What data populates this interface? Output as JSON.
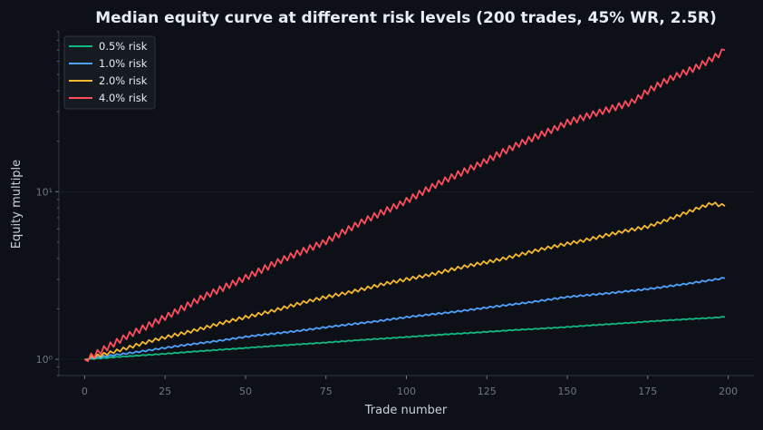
{
  "chart_data": {
    "type": "line",
    "title": "Median equity curve at different risk levels (200 trades, 45% WR, 2.5R)",
    "xlabel": "Trade number",
    "ylabel": "Equity multiple",
    "xlim": [
      -8,
      208
    ],
    "ylim": [
      0.8,
      90
    ],
    "yscale": "log",
    "x_ticks": [
      0,
      25,
      50,
      75,
      100,
      125,
      150,
      175,
      200
    ],
    "x_tick_labels": [
      "0",
      "25",
      "50",
      "75",
      "100",
      "125",
      "150",
      "175",
      "200"
    ],
    "y_ticks": [
      1,
      10
    ],
    "y_tick_labels": [
      "10⁰",
      "10¹"
    ],
    "grid": false,
    "legend_position": "top-left",
    "series": [
      {
        "name": "0.5% risk",
        "color": "#10b981",
        "x": [
          0,
          25,
          50,
          75,
          100,
          125,
          150,
          175,
          199
        ],
        "values": [
          1.0,
          1.08,
          1.17,
          1.26,
          1.36,
          1.46,
          1.56,
          1.68,
          1.79
        ]
      },
      {
        "name": "1.0% risk",
        "color": "#4da3ff",
        "x": [
          0,
          25,
          50,
          75,
          100,
          125,
          150,
          175,
          199
        ],
        "values": [
          1.0,
          1.17,
          1.36,
          1.55,
          1.78,
          2.03,
          2.35,
          2.62,
          3.05
        ]
      },
      {
        "name": "2.0% risk",
        "color": "#f5b82e",
        "x": [
          0,
          25,
          50,
          75,
          100,
          125,
          150,
          175,
          195,
          199
        ],
        "values": [
          1.0,
          1.35,
          1.78,
          2.35,
          3.0,
          3.8,
          4.9,
          6.2,
          8.5,
          8.2
        ]
      },
      {
        "name": "4.0% risk",
        "color": "#ff4d5e",
        "x": [
          0,
          25,
          50,
          75,
          100,
          125,
          150,
          160,
          170,
          175,
          180,
          190,
          199
        ],
        "values": [
          1.0,
          1.8,
          3.1,
          5.1,
          8.9,
          15.5,
          26.0,
          29.5,
          34.5,
          40.0,
          45.0,
          55.0,
          70.0
        ]
      }
    ]
  }
}
